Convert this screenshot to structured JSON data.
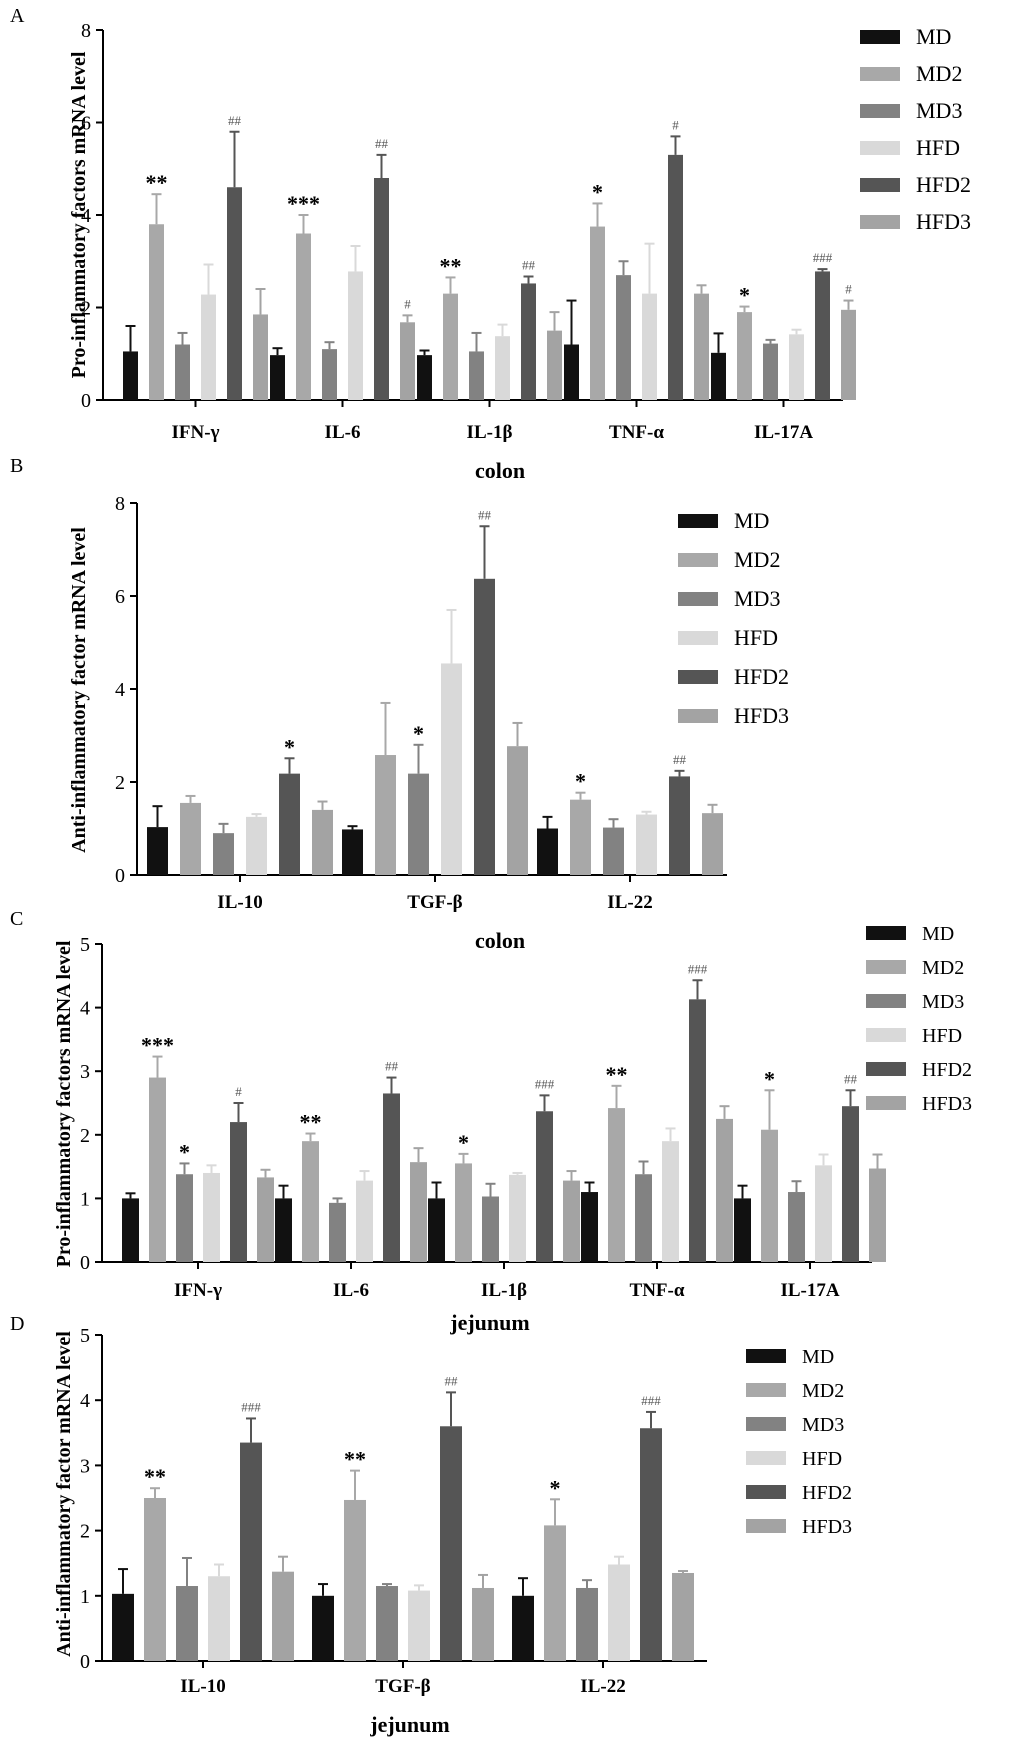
{
  "legend_labels": [
    "MD",
    "MD2",
    "MD3",
    "HFD",
    "HFD2",
    "HFD3"
  ],
  "colors": {
    "series": [
      "#111111",
      "#a8a8a8",
      "#828282",
      "#d9d9d9",
      "#555555",
      "#a3a3a3"
    ],
    "axis": "#000000"
  },
  "chart_data": [
    {
      "panel": "A",
      "type": "bar",
      "title": "",
      "caption": "colon",
      "ylabel": "Pro-inflammatory factors mRNA level",
      "xlabel": "",
      "ylim": [
        0,
        8
      ],
      "yticks": [
        0,
        2,
        4,
        6,
        8
      ],
      "legend_position": "top-right",
      "categories": [
        "IFN-γ",
        "IL-6",
        "IL-1β",
        "TNF-α",
        "IL-17A"
      ],
      "series": [
        {
          "name": "MD",
          "values": [
            1.05,
            0.97,
            0.97,
            1.2,
            1.02
          ],
          "errors": [
            0.55,
            0.15,
            0.1,
            0.95,
            0.42
          ],
          "annotations": [
            "",
            "",
            "",
            "",
            ""
          ]
        },
        {
          "name": "MD2",
          "values": [
            3.8,
            3.6,
            2.3,
            3.75,
            1.9
          ],
          "errors": [
            0.65,
            0.4,
            0.35,
            0.5,
            0.12
          ],
          "annotations": [
            "**",
            "***",
            "**",
            "*",
            "*"
          ]
        },
        {
          "name": "MD3",
          "values": [
            1.2,
            1.1,
            1.05,
            2.7,
            1.22
          ],
          "errors": [
            0.25,
            0.15,
            0.4,
            0.3,
            0.08
          ],
          "annotations": [
            "",
            "",
            "",
            "",
            ""
          ]
        },
        {
          "name": "HFD",
          "values": [
            2.28,
            2.78,
            1.38,
            2.3,
            1.42
          ],
          "errors": [
            0.65,
            0.55,
            0.25,
            1.08,
            0.1
          ],
          "annotations": [
            "",
            "",
            "",
            "",
            ""
          ]
        },
        {
          "name": "HFD2",
          "values": [
            4.6,
            4.8,
            2.52,
            5.3,
            2.78
          ],
          "errors": [
            1.2,
            0.5,
            0.15,
            0.4,
            0.05
          ],
          "annotations": [
            "##",
            "##",
            "##",
            "#",
            "###"
          ]
        },
        {
          "name": "HFD3",
          "values": [
            1.85,
            1.68,
            1.5,
            2.3,
            1.95
          ],
          "errors": [
            0.55,
            0.15,
            0.4,
            0.18,
            0.2
          ],
          "annotations": [
            "",
            "#",
            "",
            "",
            "#"
          ]
        }
      ]
    },
    {
      "panel": "B",
      "type": "bar",
      "title": "",
      "caption": "colon",
      "ylabel": "Anti-inflammatory factor mRNA level",
      "xlabel": "",
      "ylim": [
        0,
        8
      ],
      "yticks": [
        0,
        2,
        4,
        6,
        8
      ],
      "legend_position": "top-right",
      "categories": [
        "IL-10",
        "TGF-β",
        "IL-22"
      ],
      "series": [
        {
          "name": "MD",
          "values": [
            1.03,
            0.98,
            1.0
          ],
          "errors": [
            0.45,
            0.07,
            0.25
          ],
          "annotations": [
            "",
            "",
            ""
          ]
        },
        {
          "name": "MD2",
          "values": [
            1.55,
            2.58,
            1.62
          ],
          "errors": [
            0.15,
            1.12,
            0.15
          ],
          "annotations": [
            "",
            "",
            "*"
          ]
        },
        {
          "name": "MD3",
          "values": [
            0.9,
            2.18,
            1.02
          ],
          "errors": [
            0.2,
            0.62,
            0.18
          ],
          "annotations": [
            "",
            "*",
            ""
          ]
        },
        {
          "name": "HFD",
          "values": [
            1.25,
            4.55,
            1.3
          ],
          "errors": [
            0.06,
            1.15,
            0.06
          ],
          "annotations": [
            "",
            "",
            ""
          ]
        },
        {
          "name": "HFD2",
          "values": [
            2.18,
            6.37,
            2.12
          ],
          "errors": [
            0.33,
            1.13,
            0.12
          ],
          "annotations": [
            "*",
            "##",
            "##"
          ]
        },
        {
          "name": "HFD3",
          "values": [
            1.4,
            2.77,
            1.33
          ],
          "errors": [
            0.18,
            0.5,
            0.18
          ],
          "annotations": [
            "",
            "",
            ""
          ]
        }
      ]
    },
    {
      "panel": "C",
      "type": "bar",
      "title": "",
      "caption": "jejunum",
      "ylabel": "Pro-inflammatory factors mRNA level",
      "xlabel": "",
      "ylim": [
        0,
        5
      ],
      "yticks": [
        0,
        1,
        2,
        3,
        4,
        5
      ],
      "legend_position": "top-right",
      "categories": [
        "IFN-γ",
        "IL-6",
        "IL-1β",
        "TNF-α",
        "IL-17A"
      ],
      "series": [
        {
          "name": "MD",
          "values": [
            1.0,
            1.0,
            1.0,
            1.1,
            1.0
          ],
          "errors": [
            0.08,
            0.2,
            0.25,
            0.15,
            0.2
          ],
          "annotations": [
            "",
            "",
            "",
            "",
            ""
          ]
        },
        {
          "name": "MD2",
          "values": [
            2.9,
            1.9,
            1.55,
            2.42,
            2.08
          ],
          "errors": [
            0.33,
            0.12,
            0.15,
            0.35,
            0.62
          ],
          "annotations": [
            "***",
            "**",
            "*",
            "**",
            "*"
          ]
        },
        {
          "name": "MD3",
          "values": [
            1.38,
            0.93,
            1.03,
            1.38,
            1.1
          ],
          "errors": [
            0.17,
            0.07,
            0.2,
            0.2,
            0.17
          ],
          "annotations": [
            "*",
            "",
            "",
            "",
            ""
          ]
        },
        {
          "name": "HFD",
          "values": [
            1.4,
            1.28,
            1.37,
            1.9,
            1.52
          ],
          "errors": [
            0.12,
            0.15,
            0.03,
            0.2,
            0.17
          ],
          "annotations": [
            "",
            "",
            "",
            "",
            ""
          ]
        },
        {
          "name": "HFD2",
          "values": [
            2.2,
            2.65,
            2.37,
            4.13,
            2.45
          ],
          "errors": [
            0.3,
            0.25,
            0.25,
            0.3,
            0.25
          ],
          "annotations": [
            "#",
            "##",
            "###",
            "###",
            "##"
          ]
        },
        {
          "name": "HFD3",
          "values": [
            1.33,
            1.57,
            1.28,
            2.25,
            1.47
          ],
          "errors": [
            0.12,
            0.22,
            0.15,
            0.2,
            0.22
          ],
          "annotations": [
            "",
            "",
            "",
            "",
            ""
          ]
        }
      ]
    },
    {
      "panel": "D",
      "type": "bar",
      "title": "",
      "caption": "jejunum",
      "ylabel": "Anti-inflammatory factor mRNA level",
      "xlabel": "",
      "ylim": [
        0,
        5
      ],
      "yticks": [
        0,
        1,
        2,
        3,
        4,
        5
      ],
      "legend_position": "top-right",
      "categories": [
        "IL-10",
        "TGF-β",
        "IL-22"
      ],
      "series": [
        {
          "name": "MD",
          "values": [
            1.03,
            1.0,
            1.0
          ],
          "errors": [
            0.38,
            0.18,
            0.27
          ],
          "annotations": [
            "",
            "",
            ""
          ]
        },
        {
          "name": "MD2",
          "values": [
            2.5,
            2.47,
            2.08
          ],
          "errors": [
            0.15,
            0.45,
            0.4
          ],
          "annotations": [
            "**",
            "**",
            "*"
          ]
        },
        {
          "name": "MD3",
          "values": [
            1.15,
            1.15,
            1.12
          ],
          "errors": [
            0.43,
            0.03,
            0.12
          ],
          "annotations": [
            "",
            "",
            ""
          ]
        },
        {
          "name": "HFD",
          "values": [
            1.3,
            1.08,
            1.48
          ],
          "errors": [
            0.18,
            0.08,
            0.12
          ],
          "annotations": [
            "",
            "",
            ""
          ]
        },
        {
          "name": "HFD2",
          "values": [
            3.35,
            3.6,
            3.57
          ],
          "errors": [
            0.37,
            0.52,
            0.25
          ],
          "annotations": [
            "###",
            "##",
            "###"
          ]
        },
        {
          "name": "HFD3",
          "values": [
            1.37,
            1.12,
            1.35
          ],
          "errors": [
            0.23,
            0.2,
            0.03
          ],
          "annotations": [
            "",
            "",
            ""
          ]
        }
      ]
    }
  ]
}
